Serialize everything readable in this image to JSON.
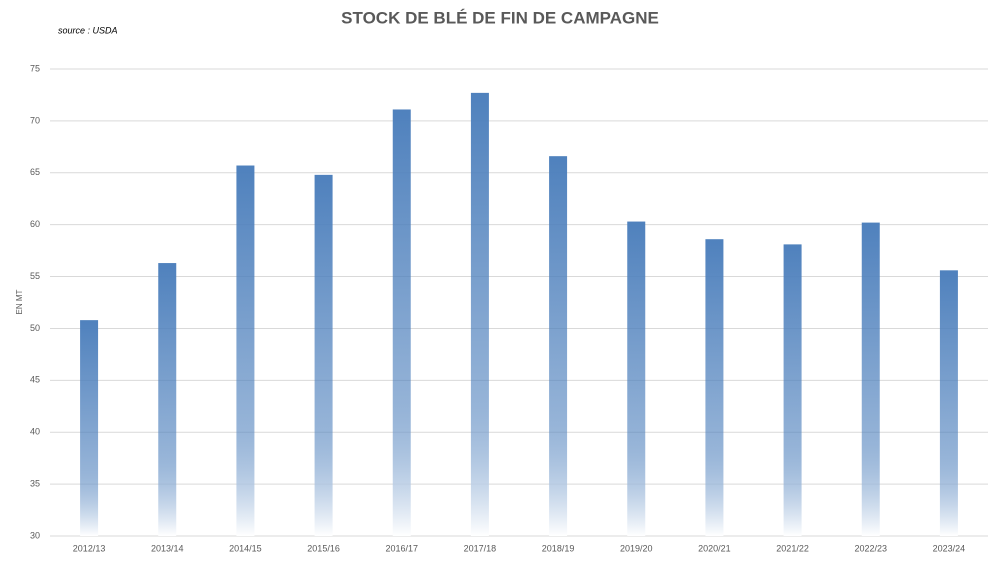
{
  "chart_data": {
    "type": "bar",
    "title": "STOCK DE BLÉ DE FIN DE CAMPAGNE",
    "subtitle": "source : USDA",
    "y_label": "EN MT",
    "categories": [
      "2012/13",
      "2013/14",
      "2014/15",
      "2015/16",
      "2016/17",
      "2017/18",
      "2018/19",
      "2019/20",
      "2020/21",
      "2021/22",
      "2022/23",
      "2023/24"
    ],
    "values": [
      50.8,
      56.3,
      65.7,
      64.8,
      71.1,
      72.7,
      66.6,
      60.3,
      58.6,
      58.1,
      60.2,
      55.6
    ],
    "color": "#4f81bd",
    "ylim": [
      30,
      75
    ],
    "yticks": [
      30,
      35,
      40,
      45,
      50,
      55,
      60,
      65,
      70,
      75
    ],
    "grid": true
  }
}
